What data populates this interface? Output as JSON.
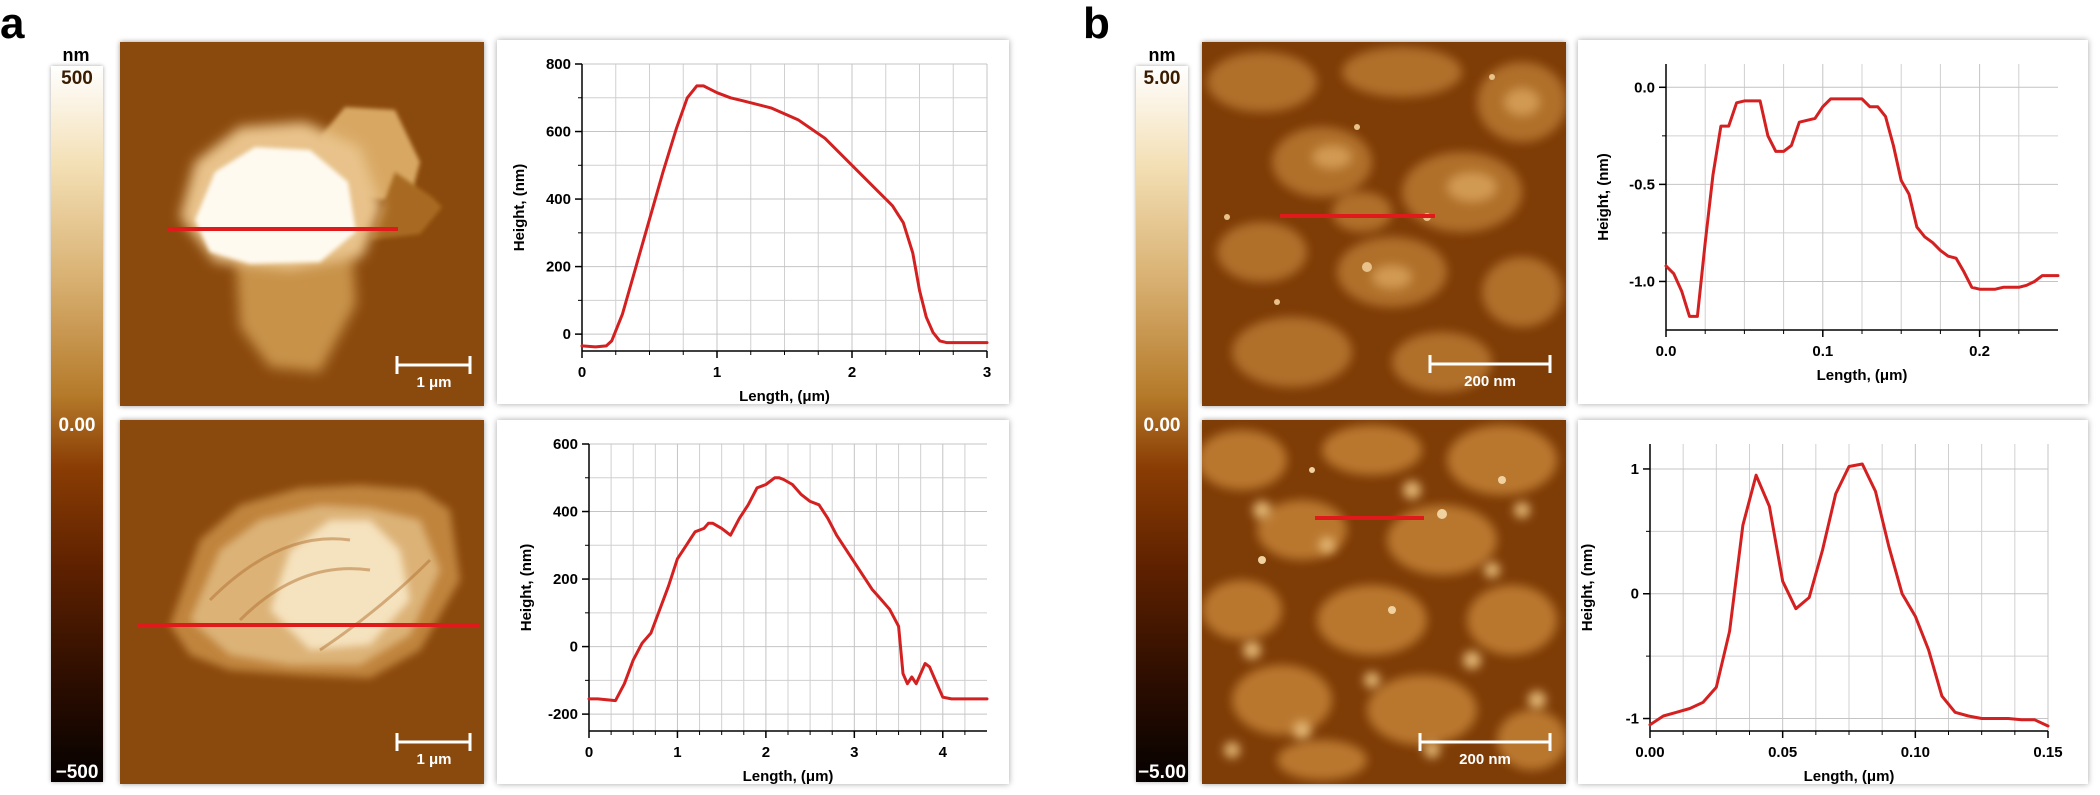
{
  "panels": {
    "a": {
      "letter": "a",
      "colorbar": {
        "unit": "nm",
        "max": "500",
        "mid": "0.00",
        "min": "−500"
      },
      "images": [
        {
          "scalebar": "1 μm"
        },
        {
          "scalebar": "1 μm"
        }
      ]
    },
    "b": {
      "letter": "b",
      "colorbar": {
        "unit": "nm",
        "max": "5.00",
        "mid": "0.00",
        "min": "−5.00"
      },
      "images": [
        {
          "scalebar": "200 nm"
        },
        {
          "scalebar": "200 nm"
        }
      ]
    }
  },
  "chart_data": [
    {
      "id": "a-top",
      "type": "line",
      "xlabel": "Length, (μm)",
      "ylabel": "Height, (nm)",
      "xlim": [
        0,
        3
      ],
      "ylim": [
        -50,
        800
      ],
      "xticks": [
        0,
        1,
        2,
        3
      ],
      "xtick_labels": [
        "0",
        "1",
        "2",
        "3"
      ],
      "yticks": [
        0,
        200,
        400,
        600,
        800
      ],
      "ytick_labels": [
        "0",
        "200",
        "400",
        "600",
        "800"
      ],
      "grid": true,
      "color": "#d42020",
      "x": [
        0,
        0.1,
        0.18,
        0.22,
        0.3,
        0.4,
        0.5,
        0.6,
        0.7,
        0.78,
        0.85,
        0.9,
        0.95,
        1.0,
        1.1,
        1.2,
        1.4,
        1.6,
        1.8,
        2.0,
        2.2,
        2.3,
        2.38,
        2.45,
        2.5,
        2.55,
        2.6,
        2.65,
        2.7,
        2.8,
        3.0
      ],
      "y": [
        -35,
        -38,
        -35,
        -20,
        60,
        200,
        340,
        480,
        610,
        700,
        735,
        735,
        725,
        715,
        700,
        690,
        670,
        635,
        580,
        500,
        420,
        380,
        330,
        240,
        130,
        50,
        5,
        -20,
        -25,
        -25,
        -25
      ]
    },
    {
      "id": "a-bottom",
      "type": "line",
      "xlabel": "Length, (μm)",
      "ylabel": "Height, (nm)",
      "xlim": [
        0,
        4.5
      ],
      "ylim": [
        -250,
        600
      ],
      "xticks": [
        0,
        1,
        2,
        3,
        4
      ],
      "xtick_labels": [
        "0",
        "1",
        "2",
        "3",
        "4"
      ],
      "yticks": [
        -200,
        0,
        200,
        400,
        600
      ],
      "ytick_labels": [
        "-200",
        "0",
        "200",
        "400",
        "600"
      ],
      "grid": true,
      "color": "#d42020",
      "x": [
        0,
        0.1,
        0.3,
        0.4,
        0.5,
        0.6,
        0.7,
        0.8,
        0.9,
        1.0,
        1.1,
        1.15,
        1.2,
        1.3,
        1.35,
        1.4,
        1.5,
        1.6,
        1.7,
        1.8,
        1.9,
        2.0,
        2.1,
        2.15,
        2.2,
        2.3,
        2.4,
        2.5,
        2.6,
        2.7,
        2.8,
        3.0,
        3.2,
        3.3,
        3.4,
        3.5,
        3.55,
        3.6,
        3.65,
        3.7,
        3.8,
        3.85,
        3.9,
        4.0,
        4.1,
        4.2,
        4.3,
        4.5
      ],
      "y": [
        -155,
        -155,
        -160,
        -110,
        -40,
        10,
        40,
        110,
        180,
        260,
        300,
        320,
        340,
        350,
        365,
        365,
        350,
        330,
        380,
        420,
        470,
        480,
        500,
        500,
        495,
        480,
        450,
        430,
        420,
        380,
        330,
        250,
        170,
        140,
        110,
        60,
        -80,
        -110,
        -90,
        -110,
        -50,
        -60,
        -90,
        -150,
        -155,
        -155,
        -155,
        -155
      ]
    },
    {
      "id": "b-top",
      "type": "line",
      "xlabel": "Length, (μm)",
      "ylabel": "Height, (nm)",
      "xlim": [
        0,
        0.25
      ],
      "ylim": [
        -1.25,
        0.12
      ],
      "xticks": [
        0,
        0.1,
        0.2
      ],
      "xtick_labels": [
        "0.0",
        "0.1",
        "0.2"
      ],
      "yticks": [
        -1.0,
        -0.5,
        0.0
      ],
      "ytick_labels": [
        "-1.0",
        "-0.5",
        "0.0"
      ],
      "grid": true,
      "color": "#d42020",
      "x": [
        0,
        0.005,
        0.01,
        0.015,
        0.02,
        0.025,
        0.03,
        0.035,
        0.04,
        0.045,
        0.05,
        0.055,
        0.06,
        0.065,
        0.07,
        0.075,
        0.08,
        0.085,
        0.09,
        0.095,
        0.1,
        0.105,
        0.11,
        0.115,
        0.12,
        0.125,
        0.13,
        0.135,
        0.14,
        0.145,
        0.15,
        0.155,
        0.16,
        0.165,
        0.17,
        0.175,
        0.18,
        0.185,
        0.19,
        0.195,
        0.2,
        0.205,
        0.21,
        0.215,
        0.22,
        0.225,
        0.23,
        0.235,
        0.24,
        0.245,
        0.25
      ],
      "y": [
        -0.92,
        -0.96,
        -1.05,
        -1.18,
        -1.18,
        -0.8,
        -0.45,
        -0.2,
        -0.2,
        -0.08,
        -0.07,
        -0.07,
        -0.07,
        -0.25,
        -0.33,
        -0.33,
        -0.3,
        -0.18,
        -0.17,
        -0.16,
        -0.1,
        -0.06,
        -0.06,
        -0.06,
        -0.06,
        -0.06,
        -0.1,
        -0.1,
        -0.15,
        -0.3,
        -0.48,
        -0.55,
        -0.72,
        -0.77,
        -0.8,
        -0.84,
        -0.87,
        -0.88,
        -0.95,
        -1.03,
        -1.04,
        -1.04,
        -1.04,
        -1.03,
        -1.03,
        -1.03,
        -1.02,
        -1.0,
        -0.97,
        -0.97,
        -0.97
      ]
    },
    {
      "id": "b-bottom",
      "type": "line",
      "xlabel": "Length, (μm)",
      "ylabel": "Height, (nm)",
      "xlim": [
        0,
        0.15
      ],
      "ylim": [
        -1.1,
        1.2
      ],
      "xticks": [
        0,
        0.05,
        0.1,
        0.15
      ],
      "xtick_labels": [
        "0.00",
        "0.05",
        "0.10",
        "0.15"
      ],
      "yticks": [
        -1,
        0,
        1
      ],
      "ytick_labels": [
        "-1",
        "0",
        "1"
      ],
      "grid": true,
      "color": "#d42020",
      "x": [
        0,
        0.005,
        0.01,
        0.015,
        0.02,
        0.025,
        0.03,
        0.035,
        0.04,
        0.045,
        0.05,
        0.055,
        0.06,
        0.065,
        0.07,
        0.075,
        0.08,
        0.085,
        0.09,
        0.095,
        0.1,
        0.105,
        0.11,
        0.115,
        0.12,
        0.125,
        0.13,
        0.135,
        0.14,
        0.145,
        0.15
      ],
      "y": [
        -1.05,
        -0.98,
        -0.95,
        -0.92,
        -0.87,
        -0.75,
        -0.3,
        0.55,
        0.95,
        0.7,
        0.1,
        -0.12,
        -0.03,
        0.35,
        0.8,
        1.02,
        1.04,
        0.82,
        0.38,
        0.0,
        -0.18,
        -0.45,
        -0.82,
        -0.95,
        -0.98,
        -1.0,
        -1.0,
        -1.0,
        -1.01,
        -1.01,
        -1.06
      ]
    }
  ]
}
